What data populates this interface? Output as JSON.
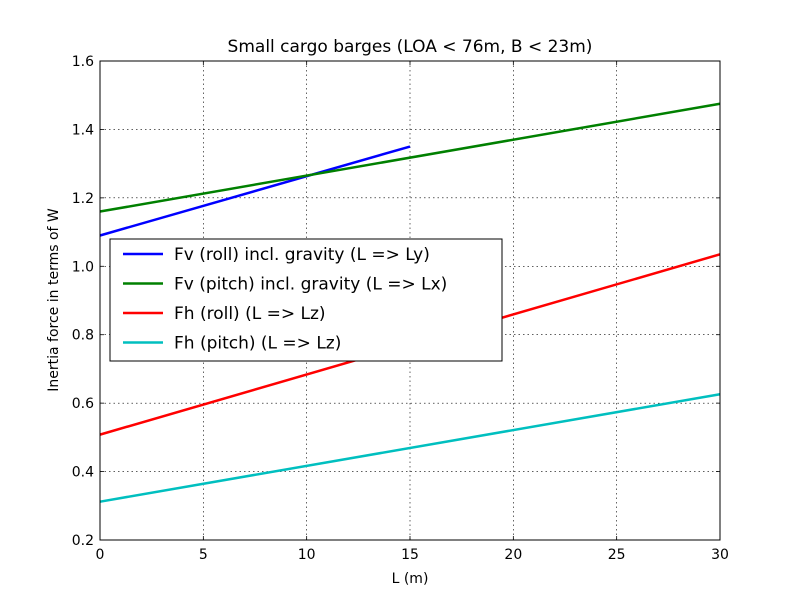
{
  "chart_data": {
    "type": "line",
    "title": "Small cargo barges (LOA < 76m, B < 23m)",
    "xlabel": "L (m)",
    "ylabel": "Inertia force in terms of W",
    "xlim": [
      0,
      30
    ],
    "ylim": [
      0.2,
      1.6
    ],
    "xticks": [
      "0",
      "5",
      "10",
      "15",
      "20",
      "25",
      "30"
    ],
    "yticks": [
      "0.2",
      "0.4",
      "0.6",
      "0.8",
      "1.0",
      "1.2",
      "1.4",
      "1.6"
    ],
    "grid": true,
    "legend_position": "center-left",
    "series": [
      {
        "name": "Fv (roll) incl. gravity (L => Ly)",
        "color": "#0000ff",
        "x": [
          0,
          15
        ],
        "y": [
          1.09,
          1.35
        ]
      },
      {
        "name": "Fv (pitch) incl. gravity (L => Lx)",
        "color": "#008000",
        "x": [
          0,
          30
        ],
        "y": [
          1.16,
          1.475
        ]
      },
      {
        "name": "Fh (roll) (L => Lz)",
        "color": "#ff0000",
        "x": [
          0,
          30
        ],
        "y": [
          0.508,
          1.035
        ]
      },
      {
        "name": "Fh (pitch) (L => Lz)",
        "color": "#00bfbf",
        "x": [
          0,
          30
        ],
        "y": [
          0.312,
          0.626
        ]
      }
    ]
  }
}
